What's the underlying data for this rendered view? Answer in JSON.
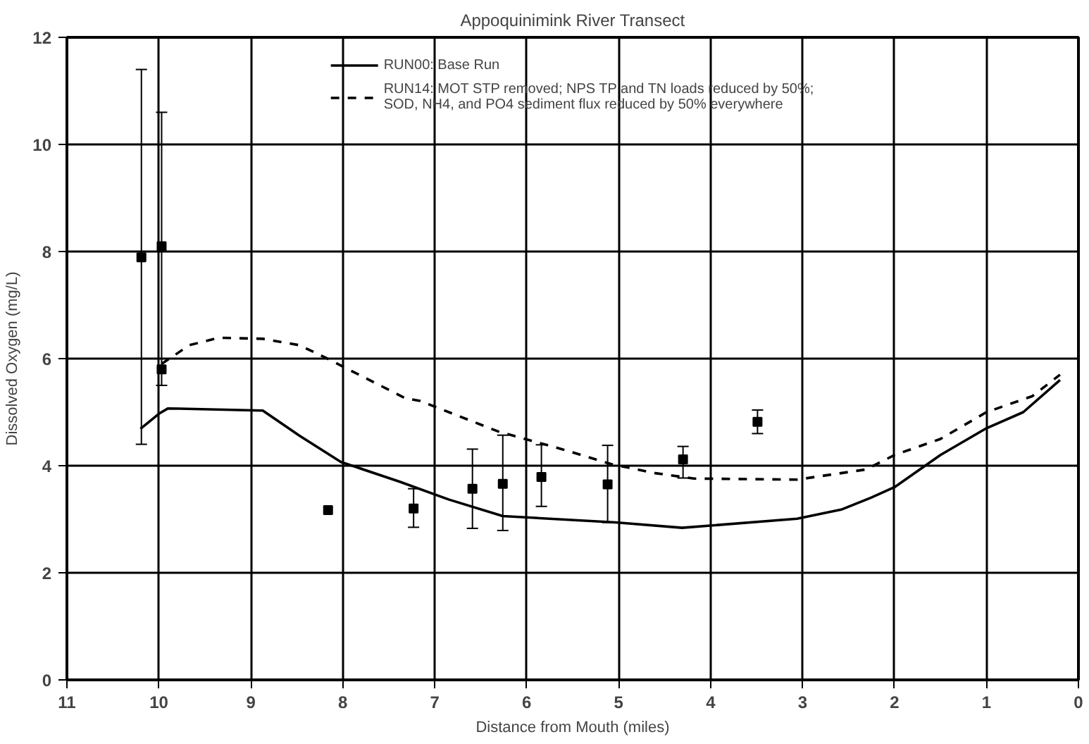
{
  "chart_data": {
    "type": "line",
    "title": "Appoquinimink River Transect",
    "xlabel": "Distance from Mouth (miles)",
    "ylabel": "Dissolved Oxygen (mg/L)",
    "xlim": [
      11,
      0
    ],
    "xticks": [
      11,
      10,
      9,
      8,
      7,
      6,
      5,
      4,
      3,
      2,
      1,
      0
    ],
    "ylim": [
      0,
      12
    ],
    "yticks": [
      0,
      2,
      4,
      6,
      8,
      10,
      12
    ],
    "grid": true,
    "legend": "top",
    "series": [
      {
        "name": "RUN00: Base Run",
        "line_style": "solid",
        "color": "#000000",
        "x": [
          10.2,
          10.0,
          9.9,
          8.87,
          8.47,
          8.02,
          7.38,
          6.85,
          6.26,
          5.03,
          4.31,
          3.06,
          2.58,
          2.26,
          2.0,
          1.5,
          1.0,
          0.6,
          0.2
        ],
        "values": [
          4.69,
          4.97,
          5.07,
          5.03,
          4.56,
          4.07,
          3.7,
          3.37,
          3.06,
          2.94,
          2.84,
          3.01,
          3.18,
          3.4,
          3.6,
          4.2,
          4.7,
          5.0,
          5.6
        ]
      },
      {
        "name": "RUN14: MOT STP removed; NPS TP and TN loads reduced by 50%;\nSOD, NH4, and PO4 sediment flux reduced by 50% everywhere",
        "line_style": "dashed",
        "color": "#000000",
        "x": [
          9.97,
          9.67,
          9.35,
          8.87,
          8.47,
          8.18,
          7.32,
          7.16,
          6.31,
          5.62,
          5.08,
          4.6,
          4.18,
          3.06,
          2.31,
          2.0,
          1.5,
          1.0,
          0.5,
          0.2
        ],
        "values": [
          5.9,
          6.25,
          6.39,
          6.37,
          6.25,
          6.01,
          5.26,
          5.21,
          4.64,
          4.31,
          4.03,
          3.86,
          3.76,
          3.74,
          3.93,
          4.2,
          4.5,
          5.0,
          5.3,
          5.7
        ]
      },
      {
        "type": "scatter",
        "marker": "square",
        "color": "#000000",
        "x": [
          10.19,
          9.97,
          9.97,
          8.16,
          7.23,
          6.59,
          6.26,
          5.84,
          5.12,
          4.3,
          3.49
        ],
        "values": [
          7.89,
          8.1,
          5.8,
          3.17,
          3.2,
          3.57,
          3.66,
          3.79,
          3.65,
          4.12,
          4.82
        ],
        "errors": [
          [
            4.4,
            11.4
          ],
          [
            6.0,
            10.6
          ],
          [
            5.5,
            6.0
          ],
          null,
          [
            2.85,
            3.57
          ],
          [
            2.83,
            4.31
          ],
          [
            2.79,
            4.57
          ],
          [
            3.24,
            4.39
          ],
          [
            2.94,
            4.38
          ],
          [
            3.77,
            4.36
          ],
          [
            4.6,
            5.04
          ]
        ]
      }
    ]
  }
}
